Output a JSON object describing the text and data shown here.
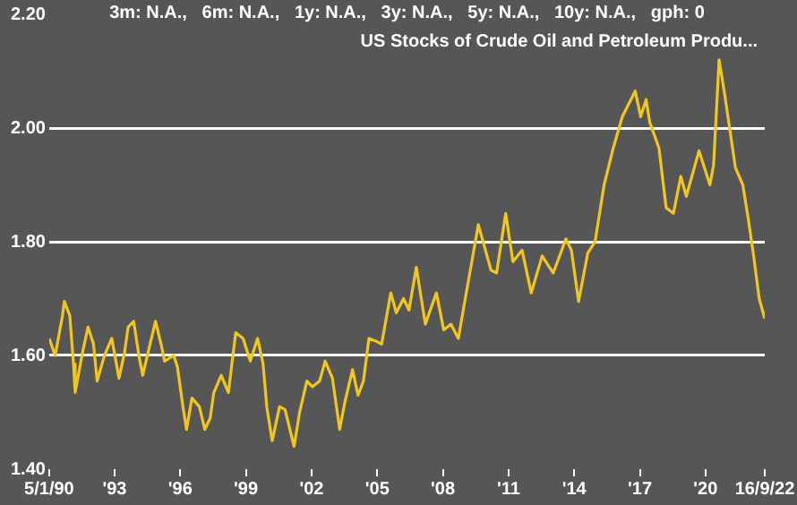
{
  "chart_data": {
    "type": "line",
    "title": "US Stocks of Crude Oil and Petroleum Produ...",
    "annotations": [
      "3m: N.A.,   6m: N.A.,   1y: N.A.,   3y: N.A.,   5y: N.A.,   10y: N.A.,   gph: 0"
    ],
    "x": [
      "1990-01-05",
      "1990-04",
      "1990-08",
      "1990-09",
      "1990-12",
      "1991-02",
      "1991-03",
      "1991-07",
      "1991-10",
      "1992-01",
      "1992-03",
      "1992-07",
      "1992-11",
      "1993-03",
      "1993-06",
      "1993-08",
      "1993-11",
      "1994-02",
      "1994-04",
      "1994-08",
      "1994-11",
      "1995-02",
      "1995-04",
      "1995-09",
      "1995-11",
      "1996-02",
      "1996-04",
      "1996-07",
      "1996-11",
      "1997-02",
      "1997-05",
      "1997-07",
      "1997-11",
      "1998-03",
      "1998-07",
      "1998-11",
      "1999-03",
      "1999-07",
      "1999-10",
      "1999-12",
      "2000-03",
      "2000-07",
      "2000-10",
      "2001-03",
      "2001-06",
      "2001-10",
      "2002-01",
      "2002-05",
      "2002-08",
      "2002-12",
      "2003-04",
      "2003-07",
      "2003-11",
      "2004-02",
      "2004-05",
      "2004-08",
      "2004-12",
      "2005-03",
      "2005-08",
      "2005-11",
      "2006-03",
      "2006-06",
      "2006-10",
      "2007-03",
      "2007-09",
      "2008-01",
      "2008-05",
      "2008-09",
      "2008-12",
      "2009-08",
      "2010-03",
      "2010-06",
      "2010-11",
      "2011-03",
      "2011-08",
      "2012-01",
      "2012-07",
      "2013-01",
      "2013-04",
      "2013-08",
      "2013-11",
      "2014-03",
      "2014-08",
      "2014-12",
      "2015-05",
      "2015-10",
      "2016-03",
      "2016-10",
      "2017-01",
      "2017-04",
      "2017-06",
      "2017-11",
      "2018-03",
      "2018-07",
      "2018-11",
      "2019-02",
      "2019-09",
      "2019-12",
      "2020-03",
      "2020-05",
      "2020-08",
      "2020-11",
      "2021-05",
      "2021-09",
      "2021-12",
      "2022-03",
      "2022-06",
      "2022-09-16"
    ],
    "series": [
      {
        "color": "#f2c61f",
        "values": [
          1.63,
          1.6,
          1.67,
          1.695,
          1.67,
          1.585,
          1.535,
          1.605,
          1.65,
          1.62,
          1.555,
          1.6,
          1.63,
          1.56,
          1.605,
          1.65,
          1.66,
          1.597,
          1.565,
          1.62,
          1.66,
          1.62,
          1.59,
          1.6,
          1.58,
          1.51,
          1.47,
          1.525,
          1.51,
          1.47,
          1.49,
          1.535,
          1.565,
          1.535,
          1.64,
          1.63,
          1.59,
          1.63,
          1.585,
          1.51,
          1.45,
          1.51,
          1.505,
          1.44,
          1.5,
          1.555,
          1.545,
          1.555,
          1.59,
          1.56,
          1.47,
          1.52,
          1.575,
          1.53,
          1.555,
          1.63,
          1.625,
          1.62,
          1.71,
          1.675,
          1.7,
          1.68,
          1.755,
          1.655,
          1.71,
          1.645,
          1.655,
          1.63,
          1.685,
          1.83,
          1.75,
          1.745,
          1.85,
          1.765,
          1.785,
          1.71,
          1.775,
          1.745,
          1.77,
          1.805,
          1.785,
          1.695,
          1.78,
          1.8,
          1.9,
          1.965,
          2.02,
          2.065,
          2.02,
          2.05,
          2.01,
          1.965,
          1.86,
          1.85,
          1.915,
          1.88,
          1.96,
          1.93,
          1.9,
          1.935,
          2.12,
          2.06,
          1.93,
          1.9,
          1.84,
          1.775,
          1.7,
          1.665
        ]
      }
    ],
    "xlim": [
      "1990-01-05",
      "2022-09-16"
    ],
    "xticks": [
      {
        "value": "1990-01-05",
        "label": "5/1/90"
      },
      {
        "value": "1993-01-01",
        "label": "'93"
      },
      {
        "value": "1996-01-01",
        "label": "'96"
      },
      {
        "value": "1999-01-01",
        "label": "'99"
      },
      {
        "value": "2002-01-01",
        "label": "'02"
      },
      {
        "value": "2005-01-01",
        "label": "'05"
      },
      {
        "value": "2008-01-01",
        "label": "'08"
      },
      {
        "value": "2011-01-01",
        "label": "'11"
      },
      {
        "value": "2014-01-01",
        "label": "'14"
      },
      {
        "value": "2017-01-01",
        "label": "'17"
      },
      {
        "value": "2020-01-01",
        "label": "'20"
      },
      {
        "value": "2022-09-16",
        "label": "16/9/22"
      }
    ],
    "ylim": [
      1.4,
      2.2
    ],
    "yticks": [
      {
        "value": 1.4,
        "label": "1.40"
      },
      {
        "value": 1.6,
        "label": "1.60"
      },
      {
        "value": 1.8,
        "label": "1.80"
      },
      {
        "value": 2.0,
        "label": "2.00"
      },
      {
        "value": 2.2,
        "label": "2.20"
      }
    ],
    "grid": "y",
    "legend": false,
    "marker": "none",
    "line_style": "solid"
  }
}
